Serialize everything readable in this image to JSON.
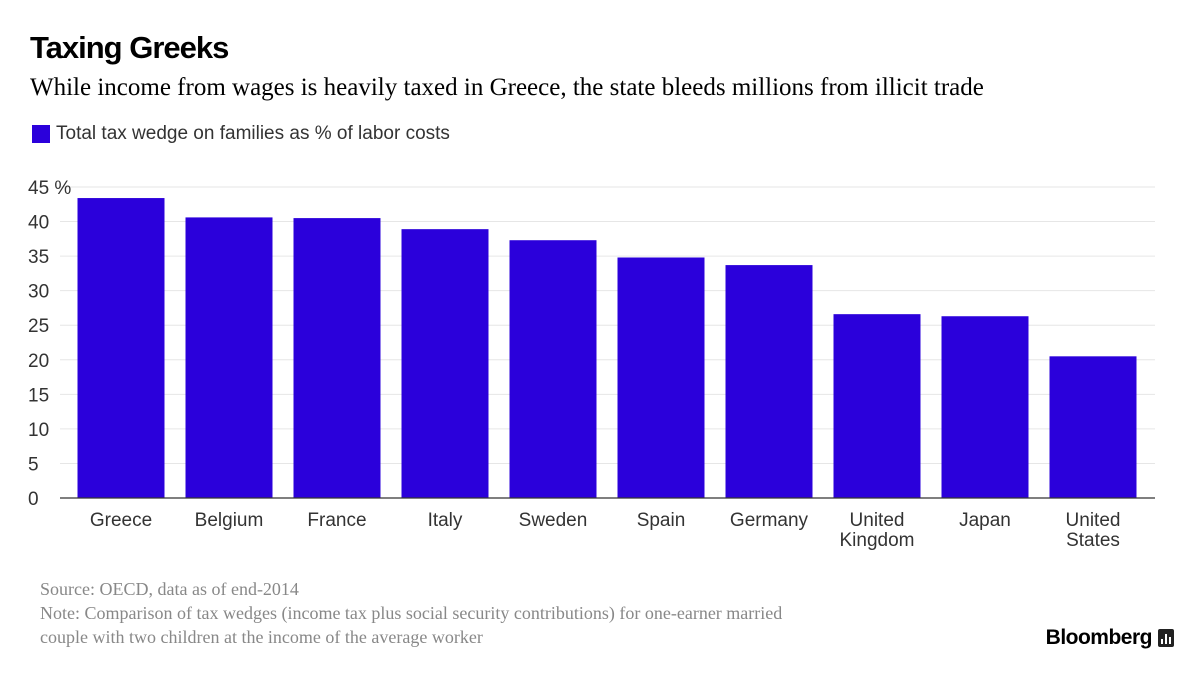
{
  "header": {
    "title": "Taxing Greeks",
    "subtitle": "While income from wages is heavily taxed in Greece, the state bleeds millions from illicit trade"
  },
  "legend": {
    "label": "Total tax wedge on families as % of labor costs",
    "color": "#2b00db"
  },
  "chart_data": {
    "type": "bar",
    "categories": [
      "Greece",
      "Belgium",
      "France",
      "Italy",
      "Sweden",
      "Spain",
      "Germany",
      "United Kingdom",
      "Japan",
      "United States"
    ],
    "category_lines": [
      [
        "Greece"
      ],
      [
        "Belgium"
      ],
      [
        "France"
      ],
      [
        "Italy"
      ],
      [
        "Sweden"
      ],
      [
        "Spain"
      ],
      [
        "Germany"
      ],
      [
        "United",
        "Kingdom"
      ],
      [
        "Japan"
      ],
      [
        "United",
        "States"
      ]
    ],
    "values": [
      43.4,
      40.6,
      40.5,
      38.9,
      37.3,
      34.8,
      33.7,
      26.6,
      26.3,
      20.5
    ],
    "ylim": [
      0,
      45
    ],
    "yticks": [
      0,
      5,
      10,
      15,
      20,
      25,
      30,
      35,
      40,
      45
    ],
    "ytick_labels": [
      "0",
      "5",
      "10",
      "15",
      "20",
      "25",
      "30",
      "35",
      "40",
      "45 %"
    ],
    "bar_color": "#2b00db",
    "grid": true
  },
  "footer": {
    "source": "Source: OECD, data as of end-2014",
    "note_line1": "Note: Comparison of tax wedges (income tax plus social security contributions) for one-earner married",
    "note_line2": "couple with two children at the income of the average worker"
  },
  "brand": {
    "name": "Bloomberg",
    "icon": "bloomberg-chart-icon"
  }
}
